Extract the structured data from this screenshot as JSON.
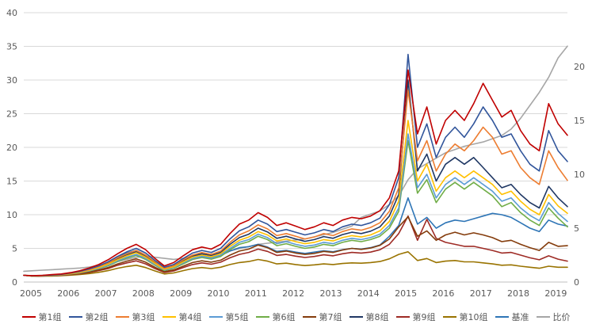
{
  "chart": {
    "background": "#ffffff",
    "grid_color": "#d9d9d9",
    "zero_line_color": "#bfbfbf",
    "axis_label_color": "#595959"
  },
  "chart_data": {
    "type": "line",
    "title": "",
    "grid": "horizontal",
    "legend_position": "bottom",
    "x_axis": {
      "label": "",
      "tick_labels": [
        "2005",
        "2006",
        "2007",
        "2008",
        "2009",
        "2010",
        "2011",
        "2012",
        "2013",
        "2014",
        "2015",
        "2016",
        "2017",
        "2018",
        "2019"
      ],
      "start": 2005,
      "step": 0.25,
      "points": 59
    },
    "y_axis_left": {
      "min": 0,
      "max": 40,
      "ticks": [
        0,
        5,
        10,
        15,
        20,
        25,
        30,
        35,
        40
      ]
    },
    "y_axis_right": {
      "min": 0,
      "max": 25,
      "ticks": [
        0,
        5,
        10,
        15,
        20
      ]
    },
    "series": [
      {
        "name": "第1组",
        "color": "#c00000",
        "axis": "left",
        "values": [
          1.0,
          0.95,
          1.0,
          1.1,
          1.2,
          1.4,
          1.7,
          2.1,
          2.6,
          3.3,
          4.2,
          5.0,
          5.6,
          4.8,
          3.5,
          2.4,
          2.9,
          3.9,
          4.8,
          5.2,
          4.9,
          5.6,
          7.2,
          8.6,
          9.2,
          10.3,
          9.6,
          8.4,
          8.8,
          8.3,
          7.8,
          8.2,
          8.8,
          8.4,
          9.2,
          9.6,
          9.4,
          9.8,
          10.6,
          12.5,
          16.5,
          31.5,
          22.0,
          26.0,
          20.5,
          24.0,
          25.5,
          24.0,
          26.5,
          29.5,
          27.0,
          24.5,
          25.5,
          22.5,
          20.5,
          19.5,
          26.5,
          23.5,
          21.8
        ]
      },
      {
        "name": "第2组",
        "color": "#31559b",
        "axis": "left",
        "values": [
          1.0,
          0.93,
          0.98,
          1.05,
          1.15,
          1.35,
          1.6,
          1.95,
          2.4,
          3.0,
          3.8,
          4.5,
          5.0,
          4.3,
          3.2,
          2.2,
          2.6,
          3.5,
          4.3,
          4.7,
          4.4,
          5.0,
          6.4,
          7.6,
          8.2,
          9.2,
          8.6,
          7.5,
          7.8,
          7.4,
          7.0,
          7.3,
          7.8,
          7.5,
          8.2,
          8.6,
          8.4,
          8.8,
          9.5,
          11.5,
          15.5,
          33.8,
          20.0,
          23.5,
          18.5,
          21.5,
          23.0,
          21.5,
          23.5,
          26.0,
          24.0,
          21.5,
          22.0,
          19.5,
          17.5,
          16.5,
          22.5,
          19.5,
          17.9
        ]
      },
      {
        "name": "第3组",
        "color": "#ed7d31",
        "axis": "left",
        "values": [
          1.0,
          0.92,
          0.97,
          1.03,
          1.12,
          1.3,
          1.55,
          1.85,
          2.3,
          2.85,
          3.6,
          4.2,
          4.7,
          4.0,
          3.0,
          2.05,
          2.45,
          3.3,
          4.0,
          4.4,
          4.1,
          4.6,
          5.9,
          7.0,
          7.6,
          8.5,
          7.9,
          6.9,
          7.2,
          6.8,
          6.4,
          6.7,
          7.2,
          6.9,
          7.5,
          7.9,
          7.7,
          8.1,
          8.8,
          10.5,
          14.0,
          28.5,
          18.0,
          21.0,
          16.5,
          19.0,
          20.5,
          19.5,
          21.0,
          23.0,
          21.5,
          19.0,
          19.5,
          17.0,
          15.5,
          14.5,
          19.5,
          17.0,
          15.1
        ]
      },
      {
        "name": "第4组",
        "color": "#ffc000",
        "axis": "left",
        "values": [
          1.0,
          0.9,
          0.95,
          1.0,
          1.1,
          1.25,
          1.45,
          1.75,
          2.15,
          2.65,
          3.3,
          3.9,
          4.35,
          3.7,
          2.75,
          1.9,
          2.25,
          3.0,
          3.7,
          4.0,
          3.75,
          4.2,
          5.3,
          6.2,
          6.7,
          7.5,
          7.0,
          6.1,
          6.4,
          6.0,
          5.7,
          5.9,
          6.3,
          6.1,
          6.6,
          6.9,
          6.7,
          7.0,
          7.6,
          9.0,
          12.0,
          24.0,
          15.0,
          17.5,
          13.5,
          15.5,
          16.5,
          15.5,
          16.5,
          15.5,
          14.5,
          13.0,
          13.5,
          12.0,
          10.8,
          10.0,
          13.0,
          11.3,
          10.2
        ]
      },
      {
        "name": "第5组",
        "color": "#5b9bd5",
        "axis": "left",
        "values": [
          1.0,
          0.9,
          0.94,
          0.99,
          1.08,
          1.22,
          1.4,
          1.68,
          2.05,
          2.5,
          3.15,
          3.7,
          4.1,
          3.5,
          2.6,
          1.8,
          2.15,
          2.85,
          3.5,
          3.8,
          3.55,
          4.0,
          5.0,
          5.9,
          6.3,
          7.1,
          6.6,
          5.7,
          6.0,
          5.6,
          5.3,
          5.5,
          5.9,
          5.7,
          6.2,
          6.5,
          6.3,
          6.6,
          7.1,
          8.4,
          11.0,
          22.0,
          14.0,
          16.0,
          12.5,
          14.5,
          15.5,
          14.5,
          15.5,
          14.5,
          13.5,
          12.0,
          12.5,
          11.0,
          9.9,
          9.1,
          11.8,
          10.2,
          9.0
        ]
      },
      {
        "name": "第6组",
        "color": "#70ad47",
        "axis": "left",
        "values": [
          1.0,
          0.89,
          0.93,
          0.98,
          1.06,
          1.2,
          1.37,
          1.63,
          2.0,
          2.4,
          3.05,
          3.55,
          3.95,
          3.35,
          2.5,
          1.72,
          2.05,
          2.7,
          3.35,
          3.65,
          3.4,
          3.8,
          4.8,
          5.6,
          6.0,
          6.8,
          6.3,
          5.4,
          5.7,
          5.3,
          5.0,
          5.2,
          5.6,
          5.4,
          5.9,
          6.2,
          6.0,
          6.3,
          6.8,
          8.0,
          10.5,
          21.0,
          13.2,
          15.2,
          11.8,
          13.8,
          14.8,
          13.8,
          14.8,
          13.8,
          12.8,
          11.2,
          11.8,
          10.3,
          9.2,
          8.4,
          11.0,
          9.5,
          8.2
        ]
      },
      {
        "name": "第7组",
        "color": "#843c0c",
        "axis": "left",
        "values": [
          1.0,
          0.88,
          0.92,
          0.96,
          1.04,
          1.15,
          1.3,
          1.5,
          1.8,
          2.15,
          2.7,
          3.1,
          3.45,
          2.95,
          2.2,
          1.55,
          1.8,
          2.35,
          2.9,
          3.15,
          2.95,
          3.25,
          4.0,
          4.6,
          4.9,
          5.5,
          5.1,
          4.4,
          4.6,
          4.3,
          4.1,
          4.25,
          4.55,
          4.4,
          4.75,
          5.0,
          4.85,
          5.05,
          5.45,
          6.4,
          8.2,
          9.7,
          6.8,
          7.6,
          6.2,
          7.0,
          7.4,
          7.0,
          7.3,
          7.0,
          6.6,
          6.0,
          6.2,
          5.6,
          5.1,
          4.7,
          5.9,
          5.3,
          5.4
        ]
      },
      {
        "name": "第8组",
        "color": "#203864",
        "axis": "left",
        "values": [
          1.0,
          0.91,
          0.96,
          1.02,
          1.1,
          1.28,
          1.5,
          1.8,
          2.2,
          2.7,
          3.45,
          4.05,
          4.5,
          3.85,
          2.85,
          1.95,
          2.35,
          3.1,
          3.85,
          4.2,
          3.95,
          4.4,
          5.6,
          6.6,
          7.1,
          8.0,
          7.45,
          6.5,
          6.8,
          6.4,
          6.05,
          6.3,
          6.75,
          6.5,
          7.05,
          7.4,
          7.2,
          7.55,
          8.2,
          9.8,
          13.0,
          30.0,
          16.5,
          19.0,
          15.0,
          17.5,
          18.5,
          17.5,
          18.5,
          17.0,
          15.5,
          14.0,
          14.5,
          13.0,
          11.8,
          11.0,
          14.2,
          12.5,
          11.2
        ]
      },
      {
        "name": "第9组",
        "color": "#9e2b25",
        "axis": "left",
        "values": [
          1.0,
          0.87,
          0.9,
          0.94,
          1.0,
          1.1,
          1.24,
          1.42,
          1.7,
          2.0,
          2.5,
          2.85,
          3.15,
          2.7,
          2.0,
          1.42,
          1.65,
          2.15,
          2.6,
          2.85,
          2.65,
          2.95,
          3.6,
          4.1,
          4.4,
          4.9,
          4.55,
          3.95,
          4.1,
          3.85,
          3.65,
          3.8,
          4.05,
          3.9,
          4.2,
          4.4,
          4.3,
          4.45,
          4.8,
          5.6,
          7.2,
          9.8,
          6.2,
          9.3,
          6.5,
          5.9,
          5.6,
          5.3,
          5.3,
          5.0,
          4.7,
          4.3,
          4.4,
          4.0,
          3.6,
          3.3,
          3.9,
          3.4,
          3.1
        ]
      },
      {
        "name": "第10组",
        "color": "#997300",
        "axis": "left",
        "values": [
          1.0,
          0.86,
          0.88,
          0.9,
          0.95,
          1.02,
          1.12,
          1.26,
          1.45,
          1.7,
          2.05,
          2.3,
          2.5,
          2.15,
          1.65,
          1.2,
          1.35,
          1.7,
          2.0,
          2.15,
          2.0,
          2.2,
          2.6,
          2.9,
          3.05,
          3.35,
          3.1,
          2.7,
          2.8,
          2.6,
          2.45,
          2.55,
          2.7,
          2.6,
          2.75,
          2.85,
          2.8,
          2.9,
          3.05,
          3.45,
          4.1,
          4.5,
          3.2,
          3.5,
          2.9,
          3.1,
          3.2,
          3.0,
          3.0,
          2.85,
          2.7,
          2.5,
          2.55,
          2.35,
          2.2,
          2.05,
          2.35,
          2.2,
          2.2
        ]
      },
      {
        "name": "基准",
        "color": "#2e75b6",
        "axis": "left",
        "values": [
          1.0,
          0.9,
          0.95,
          1.02,
          1.12,
          1.3,
          1.55,
          1.9,
          2.4,
          2.9,
          3.7,
          4.3,
          4.7,
          4.0,
          2.95,
          2.0,
          2.35,
          3.1,
          3.75,
          4.0,
          3.7,
          3.95,
          4.6,
          5.1,
          5.25,
          5.6,
          5.2,
          4.55,
          4.7,
          4.45,
          4.25,
          4.45,
          4.65,
          4.5,
          4.8,
          5.0,
          4.9,
          5.1,
          5.5,
          6.8,
          8.4,
          12.5,
          8.6,
          9.6,
          8.0,
          8.8,
          9.2,
          9.0,
          9.4,
          9.8,
          10.2,
          10.0,
          9.6,
          8.8,
          8.0,
          7.5,
          9.2,
          8.6,
          8.3
        ]
      },
      {
        "name": "比价",
        "color": "#a6a6a6",
        "axis": "right",
        "values": [
          1.0,
          1.05,
          1.1,
          1.15,
          1.2,
          1.25,
          1.3,
          1.4,
          1.55,
          1.7,
          1.9,
          2.1,
          2.3,
          2.4,
          2.3,
          2.2,
          2.1,
          2.2,
          2.4,
          2.5,
          2.6,
          2.7,
          2.9,
          3.1,
          3.3,
          3.5,
          3.6,
          3.7,
          3.8,
          3.9,
          4.0,
          4.2,
          4.4,
          4.6,
          4.9,
          5.2,
          6.0,
          6.3,
          6.6,
          7.2,
          8.0,
          9.5,
          10.5,
          11.0,
          11.5,
          12.0,
          12.3,
          12.6,
          12.8,
          13.0,
          13.3,
          13.6,
          14.2,
          15.2,
          16.4,
          17.6,
          19.0,
          20.8,
          21.9
        ]
      }
    ]
  }
}
